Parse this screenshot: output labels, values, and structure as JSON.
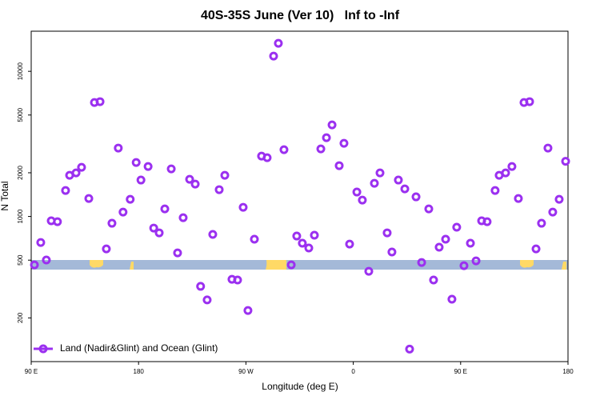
{
  "chart_data": {
    "type": "scatter",
    "title": "40S-35S June (Ver 10)   Inf to -Inf",
    "xlabel": "Longitude (deg E)",
    "ylabel": "N Total",
    "yscale": "log",
    "legend": "lower left",
    "xlim": [
      90,
      540
    ],
    "ylim": [
      100,
      18900
    ],
    "xticks": [
      {
        "value": 90,
        "label": "90 E"
      },
      {
        "value": 180,
        "label": "180"
      },
      {
        "value": 270,
        "label": "90 W"
      },
      {
        "value": 360,
        "label": "0"
      },
      {
        "value": 450,
        "label": "90 E"
      },
      {
        "value": 540,
        "label": "180"
      }
    ],
    "yticks": [
      200,
      500,
      1000,
      2000,
      5000,
      10000
    ],
    "x": [
      92.7,
      98,
      102.7,
      106.8,
      112,
      118.8,
      122.2,
      127.6,
      132.2,
      138.3,
      143,
      147.7,
      153,
      157.7,
      163,
      167,
      173,
      178,
      182,
      188,
      192.7,
      197.3,
      202,
      207.4,
      212.7,
      217.4,
      222.8,
      227.5,
      232,
      237.5,
      242.2,
      247.6,
      252.3,
      258.3,
      263,
      267.7,
      271.7,
      277.1,
      283.1,
      287.8,
      293.2,
      297.2,
      301.9,
      308,
      312.6,
      317.3,
      322.7,
      327.4,
      332.8,
      337.5,
      342.2,
      348.2,
      352.2,
      356.9,
      363,
      367.6,
      373,
      377.7,
      382.4,
      388.4,
      392.4,
      397.8,
      403.2,
      407.2,
      412.6,
      417.3,
      423.3,
      427.3,
      432,
      437.4,
      442.7,
      446.7,
      452.8,
      458.2,
      462.9,
      467.6,
      472.2,
      478.9,
      482.3,
      487.7,
      493,
      498.4,
      503.1,
      507.8,
      513.2,
      517.8,
      523.2,
      527.2,
      532.6,
      538
    ],
    "series": [
      {
        "name": "Land (Nadir&Glint) and Ocean (Glint)",
        "color": "#9b30f0",
        "values": [
          464,
          662,
          501,
          933,
          920,
          1510,
          1922,
          1996,
          2182,
          1330,
          6100,
          6180,
          598,
          898,
          2960,
          1072,
          1313,
          2355,
          1782,
          2210,
          832,
          771,
          1128,
          2128,
          561,
          981,
          1804,
          1672,
          330,
          266,
          752,
          1530,
          1922,
          369,
          365,
          1157,
          225,
          697,
          2606,
          2541,
          12730,
          15590,
          2884,
          464,
          733,
          654,
          606,
          743,
          2922,
          3490,
          4276,
          2239,
          3192,
          645,
          1473,
          1297,
          419,
          1693,
          1996,
          771,
          569,
          1782,
          1549,
          122,
          1365,
          482,
          1128,
          365,
          614,
          697,
          269,
          843,
          458,
          654,
          494,
          933,
          920,
          1510,
          1922,
          1996,
          2210,
          1330,
          6100,
          6180,
          598,
          898,
          2960,
          1072,
          1313,
          2400
        ]
      }
    ]
  }
}
